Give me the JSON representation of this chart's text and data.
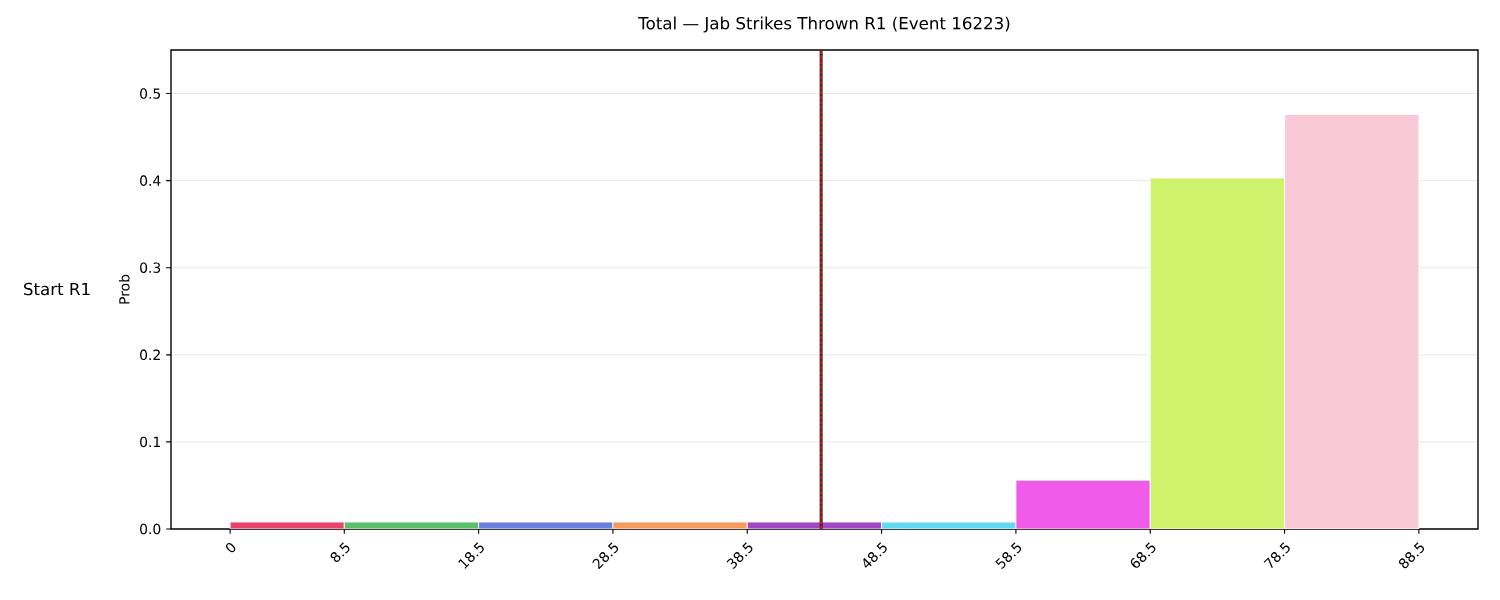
{
  "chart_data": {
    "type": "histogram",
    "title": "Total — Jab Strikes Thrown R1 (Event 16223)",
    "ylabel": "Prob",
    "annotations": [
      "Start R1"
    ],
    "bins": [
      0,
      8.5,
      18.5,
      28.5,
      38.5,
      48.5,
      58.5,
      68.5,
      78.5,
      88.5
    ],
    "values": [
      0.008,
      0.008,
      0.008,
      0.008,
      0.008,
      0.008,
      0.056,
      0.403,
      0.476
    ],
    "colors": [
      "#e8436b",
      "#5cbf69",
      "#6a7fe0",
      "#f59b5b",
      "#a347c6",
      "#62d9f4",
      "#f05ce9",
      "#cdf26c",
      "#f9c9d8"
    ],
    "xlim": [
      -4.4,
      92.9
    ],
    "xticks": [
      0,
      8.5,
      18.5,
      28.5,
      38.5,
      48.5,
      58.5,
      68.5,
      78.5,
      88.5
    ],
    "ylim": [
      0,
      0.55
    ],
    "yticks": [
      {
        "value": 0,
        "label": "0.0"
      },
      0.1,
      0.2,
      0.3,
      0.4,
      0.5
    ],
    "grid": "y",
    "ref_lines": [
      {
        "axis": "x",
        "value": 44,
        "color": "#333333",
        "line_style": "solid"
      },
      {
        "axis": "x",
        "value": 44,
        "color": "#ff0000",
        "line_style": "dashed"
      }
    ]
  }
}
